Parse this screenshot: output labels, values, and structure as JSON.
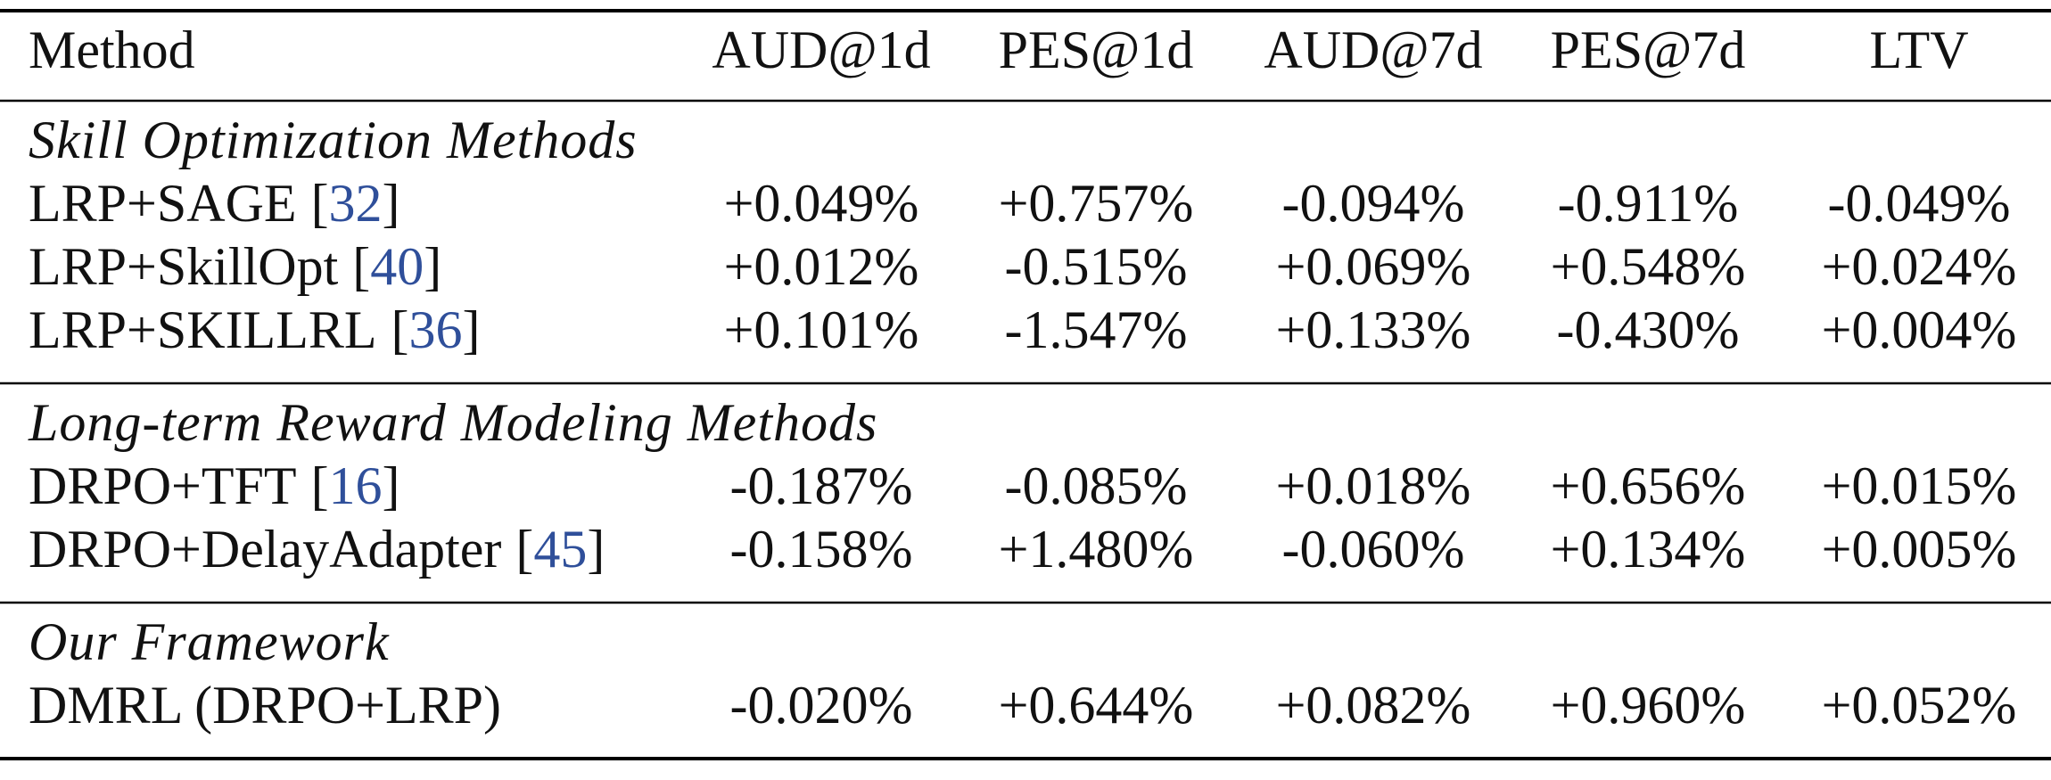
{
  "header": [
    "Method",
    "AUD@1d",
    "PES@1d",
    "AUD@7d",
    "PES@7d",
    "LTV"
  ],
  "groups": [
    {
      "title": "Skill Optimization Methods",
      "rows": [
        {
          "method": "LRP+SAGE",
          "citation": {
            "open": "[",
            "ref": "32",
            "close": "]"
          },
          "values": [
            "+0.049%",
            "+0.757%",
            "-0.094%",
            "-0.911%",
            "-0.049%"
          ]
        },
        {
          "method": "LRP+SkillOpt",
          "citation": {
            "open": "[",
            "ref": "40",
            "close": "]"
          },
          "values": [
            "+0.012%",
            "-0.515%",
            "+0.069%",
            "+0.548%",
            "+0.024%"
          ]
        },
        {
          "method": "LRP+SKILLRL",
          "citation": {
            "open": "[",
            "ref": "36",
            "close": "]"
          },
          "values": [
            "+0.101%",
            "-1.547%",
            "+0.133%",
            "-0.430%",
            "+0.004%"
          ]
        }
      ]
    },
    {
      "title": "Long-term Reward Modeling Methods",
      "rows": [
        {
          "method": "DRPO+TFT",
          "citation": {
            "open": "[",
            "ref": "16",
            "close": "]"
          },
          "values": [
            "-0.187%",
            "-0.085%",
            "+0.018%",
            "+0.656%",
            "+0.015%"
          ]
        },
        {
          "method": "DRPO+DelayAdapter",
          "citation": {
            "open": "[",
            "ref": "45",
            "close": "]"
          },
          "values": [
            "-0.158%",
            "+1.480%",
            "-0.060%",
            "+0.134%",
            "+0.005%"
          ]
        }
      ]
    },
    {
      "title": "Our Framework",
      "rows": [
        {
          "method": "DMRL (DRPO+LRP)",
          "values": [
            "-0.020%",
            "+0.644%",
            "+0.082%",
            "+0.960%",
            "+0.052%"
          ]
        }
      ]
    }
  ]
}
